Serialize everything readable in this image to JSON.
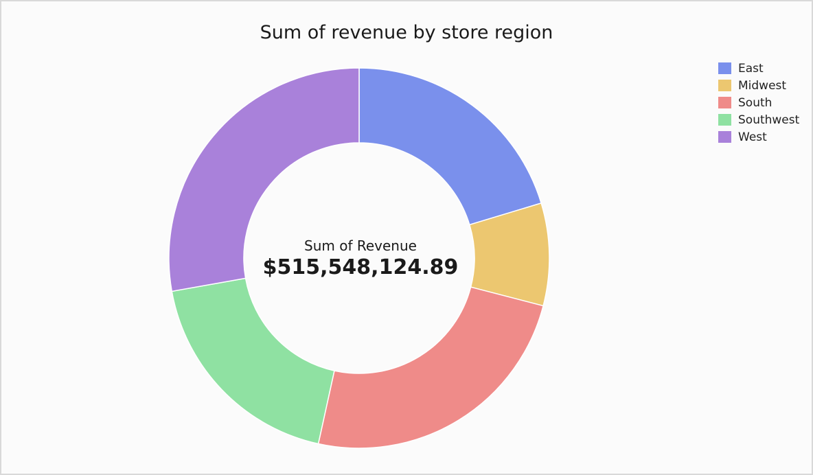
{
  "chart_data": {
    "type": "pie",
    "title": "Sum of revenue by store region",
    "center_caption": "Sum of Revenue",
    "center_value": "$515,548,124.89",
    "legend_position": "top-right",
    "categories": [
      "East",
      "Midwest",
      "South",
      "Southwest",
      "West"
    ],
    "values": [
      104.8,
      44.9,
      125.8,
      96.7,
      143.3
    ],
    "value_unit": "millions USD (approximate)",
    "colors": [
      "#7a90ec",
      "#ecc770",
      "#ef8b89",
      "#8fe1a2",
      "#a981da"
    ]
  }
}
